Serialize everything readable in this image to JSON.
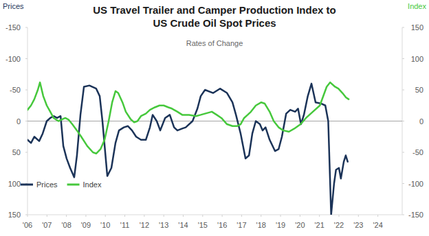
{
  "chart_data": {
    "type": "line",
    "title": "US Travel Trailer and Camper Production Index to US Crude Oil Spot Prices",
    "subtitle": "Rates of Change",
    "y_label": "Prices",
    "y2_label": "Index",
    "legend": "lower left",
    "grid": false,
    "xlim": [
      2006,
      2025.25
    ],
    "xticks": [
      {
        "value": 2006,
        "label": "'06"
      },
      {
        "value": 2007,
        "label": "'07"
      },
      {
        "value": 2008,
        "label": "'08"
      },
      {
        "value": 2009,
        "label": "'09"
      },
      {
        "value": 2010,
        "label": "'10"
      },
      {
        "value": 2011,
        "label": "'11"
      },
      {
        "value": 2012,
        "label": "'12"
      },
      {
        "value": 2013,
        "label": "'13"
      },
      {
        "value": 2014,
        "label": "'14"
      },
      {
        "value": 2015,
        "label": "'15"
      },
      {
        "value": 2016,
        "label": "'16"
      },
      {
        "value": 2017,
        "label": "'17"
      },
      {
        "value": 2018,
        "label": "'18"
      },
      {
        "value": 2019,
        "label": "'19"
      },
      {
        "value": 2020,
        "label": "'20"
      },
      {
        "value": 2021,
        "label": "'21"
      },
      {
        "value": 2022,
        "label": "'22"
      },
      {
        "value": 2023,
        "label": "'23"
      },
      {
        "value": 2024,
        "label": "'24"
      }
    ],
    "ylim": [
      150,
      -150
    ],
    "yticks": [
      -150,
      -100,
      -50,
      0,
      50,
      100,
      150
    ],
    "y2lim": [
      -150,
      150
    ],
    "y2ticks": [
      -150,
      -100,
      -50,
      0,
      50,
      100,
      150
    ],
    "series": [
      {
        "name": "Prices",
        "color": "#1b3358",
        "axis": "y",
        "x": [
          2006.0,
          2006.18,
          2006.35,
          2006.6,
          2006.78,
          2006.99,
          2007.17,
          2007.34,
          2007.52,
          2007.7,
          2007.84,
          2008.01,
          2008.19,
          2008.4,
          2008.54,
          2008.72,
          2008.9,
          2009.18,
          2009.53,
          2009.71,
          2009.85,
          2010.1,
          2010.31,
          2010.52,
          2010.7,
          2010.95,
          2011.16,
          2011.37,
          2011.58,
          2011.83,
          2012.08,
          2012.29,
          2012.43,
          2012.64,
          2012.82,
          2013.07,
          2013.31,
          2013.53,
          2013.7,
          2013.95,
          2014.13,
          2014.48,
          2014.73,
          2014.9,
          2015.12,
          2015.54,
          2015.89,
          2016.25,
          2016.53,
          2016.71,
          2016.95,
          2017.2,
          2017.38,
          2017.55,
          2017.73,
          2017.94,
          2018.08,
          2018.23,
          2018.44,
          2018.72,
          2018.9,
          2019.07,
          2019.29,
          2019.5,
          2019.75,
          2019.9,
          2020.05,
          2020.2,
          2020.4,
          2020.59,
          2020.8,
          2021.1,
          2021.3,
          2021.45,
          2021.6,
          2021.75,
          2021.85,
          2022.0,
          2022.1,
          2022.25,
          2022.35,
          2022.45
        ],
        "values": [
          30,
          35,
          25,
          32,
          20,
          0,
          -5,
          -8,
          -5,
          -8,
          40,
          60,
          75,
          90,
          55,
          -10,
          -55,
          -57,
          -52,
          -40,
          0,
          88,
          75,
          35,
          15,
          10,
          8,
          15,
          25,
          30,
          30,
          10,
          -10,
          0,
          15,
          -5,
          -10,
          10,
          15,
          12,
          10,
          0,
          -20,
          -40,
          -50,
          -45,
          -52,
          -45,
          -30,
          -10,
          20,
          60,
          55,
          20,
          0,
          5,
          15,
          10,
          30,
          48,
          45,
          25,
          -12,
          -18,
          -15,
          -20,
          5,
          -10,
          -40,
          -60,
          -30,
          -28,
          -25,
          0,
          150,
          100,
          78,
          75,
          92,
          65,
          55,
          65
        ]
      },
      {
        "name": "Index",
        "color": "#46c83c",
        "axis": "y2",
        "x": [
          2006.0,
          2006.18,
          2006.35,
          2006.53,
          2006.64,
          2006.81,
          2006.99,
          2007.17,
          2007.34,
          2007.59,
          2007.94,
          2008.12,
          2008.3,
          2008.54,
          2008.76,
          2009.07,
          2009.36,
          2009.53,
          2009.75,
          2009.96,
          2010.17,
          2010.35,
          2010.52,
          2010.66,
          2010.88,
          2011.05,
          2011.3,
          2011.48,
          2011.65,
          2011.83,
          2012.08,
          2012.29,
          2012.54,
          2012.78,
          2013.0,
          2013.24,
          2013.42,
          2013.7,
          2013.95,
          2014.3,
          2014.66,
          2014.9,
          2015.12,
          2015.47,
          2015.72,
          2015.96,
          2016.25,
          2016.53,
          2016.78,
          2016.95,
          2017.13,
          2017.31,
          2017.48,
          2017.73,
          2018.01,
          2018.19,
          2018.44,
          2018.65,
          2018.9,
          2019.14,
          2019.43,
          2019.71,
          2020.03,
          2020.31,
          2020.66,
          2021.02,
          2021.37,
          2021.55,
          2021.8,
          2021.97,
          2022.18,
          2022.36,
          2022.5
        ],
        "values": [
          18,
          25,
          35,
          50,
          62,
          40,
          25,
          15,
          5,
          0,
          5,
          2,
          -5,
          -15,
          -25,
          -40,
          -50,
          -52,
          -45,
          -30,
          0,
          30,
          48,
          45,
          30,
          15,
          3,
          -2,
          0,
          8,
          12,
          18,
          22,
          25,
          25,
          22,
          20,
          15,
          10,
          10,
          8,
          10,
          12,
          15,
          10,
          5,
          -5,
          -8,
          -8,
          -5,
          5,
          10,
          15,
          25,
          30,
          28,
          15,
          0,
          -10,
          -15,
          -17,
          -12,
          -5,
          5,
          15,
          25,
          55,
          62,
          55,
          52,
          45,
          38,
          35
        ]
      }
    ]
  }
}
